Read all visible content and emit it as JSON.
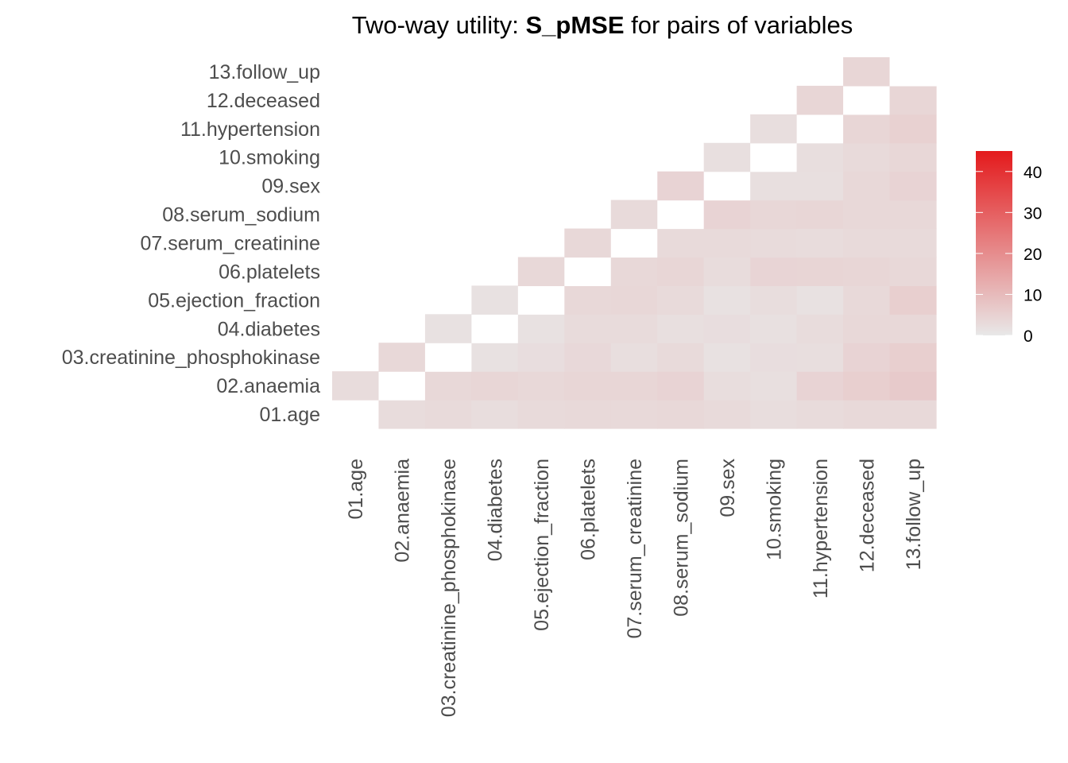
{
  "chart_data": {
    "type": "heatmap",
    "title_prefix": "Two-way utility: ",
    "title_bold": "S_pMSE",
    "title_suffix": " for pairs of variables",
    "variables": [
      "01.age",
      "02.anaemia",
      "03.creatinine_phosphokinase",
      "04.diabetes",
      "05.ejection_fraction",
      "06.platelets",
      "07.serum_creatinine",
      "08.serum_sodium",
      "09.sex",
      "10.smoking",
      "11.hypertension",
      "12.deceased",
      "13.follow_up"
    ],
    "upper_triangle_values": [
      [
        2.5,
        2.6,
        3.0,
        2.5,
        3.0,
        3.2,
        3.2,
        3.5,
        3.0,
        2.5,
        2.8,
        3.2,
        3.2
      ],
      [
        2.8,
        2.0,
        3.5,
        4.0,
        3.5,
        4.0,
        4.0,
        4.5,
        2.5,
        2.0,
        4.5,
        5.5,
        6.5
      ],
      [
        2.0,
        3.8,
        3.2,
        1.6,
        2.3,
        3.4,
        2.2,
        3.0,
        1.5,
        2.3,
        2.2,
        4.5,
        5.5
      ],
      [
        2.5,
        1.8,
        3.3,
        0.6,
        1.6,
        2.8,
        2.8,
        2.0,
        2.3,
        1.8,
        2.7,
        3.5,
        3.5
      ],
      [
        3.5,
        3.5,
        2.8,
        4.0,
        3.0,
        3.5,
        3.8,
        3.0,
        1.6,
        2.5,
        1.6,
        3.2,
        5.5
      ],
      [
        4.0,
        4.2,
        4.0,
        4.5,
        4.0,
        3.2,
        3.5,
        4.0,
        2.6,
        4.3,
        4.2,
        4.0,
        3.5
      ],
      [
        3.5,
        3.3,
        4.5,
        3.5,
        3.5,
        3.0,
        3.5,
        3.0,
        3.0,
        2.8,
        2.7,
        3.0,
        3.0
      ],
      [
        3.3,
        3.8,
        4.5,
        3.5,
        4.5,
        3.5,
        4.2,
        4.0,
        4.5,
        3.8,
        4.0,
        3.5,
        3.5
      ],
      [
        5.0,
        8.0,
        4.0,
        2.8,
        3.3,
        3.5,
        3.5,
        3.5,
        2.7,
        2.0,
        2.0,
        3.5,
        4.5
      ],
      [
        4.0,
        8.0,
        3.8,
        3.5,
        4.5,
        4.0,
        4.0,
        3.5,
        2.5,
        2.5,
        2.2,
        3.0,
        3.7
      ],
      [
        3.5,
        3.5,
        3.5,
        4.0,
        3.5,
        4.0,
        3.5,
        4.3,
        2.5,
        2.5,
        3.0,
        4.0,
        5.0
      ],
      [
        3.3,
        3.5,
        3.5,
        3.5,
        3.5,
        4.5,
        3.0,
        3.5,
        1.5,
        2.5,
        4.5,
        3.5,
        4.0
      ],
      [
        3.2,
        3.2,
        3.0,
        3.5,
        4.5,
        3.5,
        3.5,
        3.5,
        2.0,
        2.0,
        3.5,
        3.5,
        3.5
      ]
    ],
    "colorbar": {
      "low_color": "#e8e8e8",
      "high_color": "#e41a1c",
      "range": [
        0,
        45
      ],
      "ticks": [
        0,
        10,
        20,
        30,
        40
      ],
      "tick_labels": [
        "0",
        "10",
        "20",
        "30",
        "40"
      ]
    },
    "diagonal_color": "#ffffff",
    "legend_position": "right",
    "grid": false
  }
}
